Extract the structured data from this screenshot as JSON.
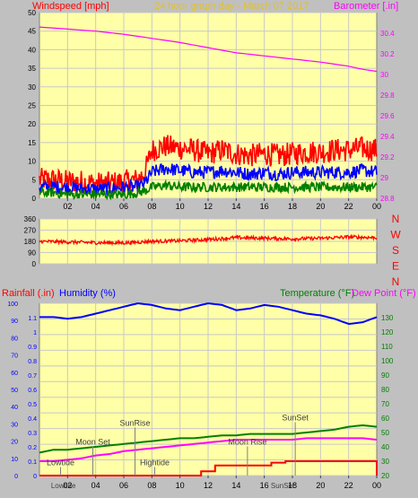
{
  "page": {
    "background": "#c0c0c0",
    "plot_background": "#ffffa8",
    "grid_color": "#c8c8c8"
  },
  "chart_data": [
    {
      "type": "line",
      "name": "wind-baro",
      "title": "24 hour graph day - March 07 2017",
      "title_color": "#e0c030",
      "left_label": "Windspeed [mph]",
      "left_label_color": "#ff0000",
      "right_label": "Barometer [.in]",
      "right_label_color": "#ff00ff",
      "x_ticks": [
        "02",
        "04",
        "06",
        "08",
        "10",
        "12",
        "14",
        "16",
        "18",
        "20",
        "22",
        "00"
      ],
      "x_range": [
        0,
        24
      ],
      "ylim_left": [
        0,
        50
      ],
      "left_ticks": [
        "0",
        "5",
        "10",
        "15",
        "20",
        "25",
        "30",
        "35",
        "40",
        "45",
        "50"
      ],
      "ylim_right": [
        28.8,
        30.6
      ],
      "right_ticks": [
        "28.8",
        "29",
        "29.2",
        "29.4",
        "29.6",
        "29.8",
        "30",
        "30.2",
        "30.4"
      ],
      "grid": true,
      "series": [
        {
          "key": "gust",
          "color": "#ff0000",
          "x": [
            0,
            1,
            2,
            3,
            4,
            5,
            6,
            7,
            7.5,
            8,
            9,
            10,
            11,
            12,
            13,
            14,
            15,
            16,
            17,
            18,
            19,
            20,
            21,
            22,
            23,
            24
          ],
          "values": [
            5,
            5,
            4.5,
            4.5,
            4,
            4,
            4.5,
            5,
            7,
            13,
            14,
            13.5,
            13,
            12,
            13,
            12,
            11.5,
            12,
            11.5,
            12,
            12.5,
            12.5,
            13,
            13,
            13.5,
            13
          ],
          "spread": 3.2
        },
        {
          "key": "average",
          "color": "#0000ff",
          "x": [
            0,
            1,
            2,
            3,
            4,
            5,
            6,
            7,
            7.5,
            8,
            9,
            10,
            11,
            12,
            13,
            14,
            15,
            16,
            17,
            18,
            19,
            20,
            21,
            22,
            23,
            24
          ],
          "values": [
            3,
            3,
            3,
            2.5,
            2.5,
            2.5,
            3,
            3,
            4,
            7,
            8,
            7.5,
            7,
            7,
            7.5,
            7,
            6.5,
            7,
            6.5,
            7,
            7,
            7,
            7,
            7,
            7.5,
            7
          ],
          "spread": 1.8
        },
        {
          "key": "minimum",
          "color": "#008000",
          "x": [
            0,
            1,
            2,
            3,
            4,
            5,
            6,
            7,
            7.5,
            8,
            9,
            10,
            11,
            12,
            13,
            14,
            15,
            16,
            17,
            18,
            19,
            20,
            21,
            22,
            23,
            24
          ],
          "values": [
            1.5,
            1.5,
            1,
            1,
            1,
            1,
            1,
            1.5,
            2,
            3,
            3.5,
            3,
            3,
            3,
            3,
            3,
            3,
            3,
            3,
            3,
            3,
            3,
            3,
            3,
            3,
            3
          ],
          "spread": 1.3
        },
        {
          "key": "barometer",
          "color": "#ff00ff",
          "axis": "right",
          "x": [
            0,
            2,
            4,
            6,
            8,
            10,
            12,
            14,
            16,
            18,
            20,
            22,
            23,
            24
          ],
          "values": [
            30.46,
            30.44,
            30.42,
            30.39,
            30.35,
            30.31,
            30.26,
            30.21,
            30.18,
            30.15,
            30.12,
            30.08,
            30.05,
            30.03
          ]
        }
      ]
    },
    {
      "type": "line",
      "name": "wind-direction",
      "x_range": [
        0,
        24
      ],
      "ylim": [
        0,
        360
      ],
      "left_ticks": [
        "0",
        "90",
        "180",
        "270",
        "360"
      ],
      "right_labels": [
        "N",
        "W",
        "S",
        "E",
        "N"
      ],
      "right_label_color": "#ff0000",
      "grid": true,
      "series": [
        {
          "key": "direction",
          "color": "#ff0000",
          "x": [
            0,
            2,
            4,
            6,
            8,
            10,
            12,
            14,
            16,
            18,
            20,
            22,
            24
          ],
          "values": [
            180,
            175,
            170,
            168,
            180,
            185,
            195,
            210,
            205,
            200,
            205,
            215,
            210
          ],
          "spread": 14
        }
      ]
    },
    {
      "type": "line",
      "name": "rain-humidity-temp",
      "rain_label": "Rainfall (.in)",
      "rain_label_color": "#ff0000",
      "humidity_label": "Humidity (%)",
      "humidity_label_color": "#0000ff",
      "temp_label": "Temperature (°F)",
      "temp_label_color": "#008000",
      "dew_label": "Dew Point (°F)",
      "dew_label_color": "#ff00ff",
      "x_ticks": [
        "02",
        "04",
        "06",
        "08",
        "10",
        "12",
        "14",
        "16",
        "18",
        "20",
        "22",
        "00"
      ],
      "x_range": [
        0,
        24
      ],
      "humidity_ticks": [
        "0",
        "10",
        "20",
        "30",
        "40",
        "50",
        "60",
        "70",
        "80",
        "90",
        "100"
      ],
      "rain_ticks": [
        "0",
        "0.1",
        "0.2",
        "0.3",
        "0.4",
        "0.5",
        "0.6",
        "0.7",
        "0.8",
        "0.9",
        "1",
        "1.1"
      ],
      "temp_ticks": [
        "20",
        "30",
        "40",
        "50",
        "60",
        "70",
        "80",
        "90",
        "100",
        "110",
        "120",
        "130"
      ],
      "ylim_humidity": [
        0,
        100
      ],
      "ylim_rain": [
        0,
        1.2
      ],
      "ylim_temp": [
        20,
        140
      ],
      "grid": true,
      "annotations": [
        {
          "label": "Lowtide",
          "x": 1.5,
          "y_frac": 0.06
        },
        {
          "label": "Moon Set",
          "x": 3.8,
          "y_frac": 0.18
        },
        {
          "label": "SunRise",
          "x": 6.8,
          "y_frac": 0.29
        },
        {
          "label": "Hightide",
          "x": 8.2,
          "y_frac": 0.06
        },
        {
          "label": "Moon Rise",
          "x": 14.8,
          "y_frac": 0.18
        },
        {
          "label": "SunSet",
          "x": 18.2,
          "y_frac": 0.32
        }
      ],
      "axis_notes": [
        {
          "label": "Lowtide",
          "x": 1.7
        },
        {
          "label": "SunSet",
          "x": 17.3
        }
      ],
      "series": [
        {
          "key": "humidity",
          "color": "#0000ff",
          "axis": "humidity",
          "x": [
            0,
            1,
            2,
            3,
            4,
            5,
            6,
            7,
            8,
            9,
            10,
            11,
            12,
            13,
            14,
            15,
            16,
            17,
            18,
            19,
            20,
            21,
            22,
            23,
            24
          ],
          "values": [
            92,
            92,
            91,
            92,
            94,
            96,
            98,
            100,
            99,
            97,
            96,
            98,
            100,
            99,
            96,
            97,
            99,
            98,
            96,
            94,
            93,
            91,
            88,
            89,
            92
          ]
        },
        {
          "key": "temperature",
          "color": "#008000",
          "axis": "temp",
          "x": [
            0,
            1,
            2,
            3,
            4,
            5,
            6,
            7,
            8,
            9,
            10,
            11,
            12,
            13,
            14,
            15,
            16,
            17,
            18,
            19,
            20,
            21,
            22,
            23,
            24
          ],
          "values": [
            36,
            38,
            38,
            39,
            40,
            41,
            42,
            43,
            44,
            45,
            46,
            46,
            47,
            48,
            48,
            49,
            49,
            49,
            49,
            50,
            51,
            52,
            54,
            55,
            54
          ]
        },
        {
          "key": "dewpoint",
          "color": "#ff00ff",
          "axis": "temp",
          "x": [
            0,
            1,
            2,
            3,
            4,
            5,
            6,
            7,
            8,
            9,
            10,
            11,
            12,
            13,
            14,
            15,
            16,
            17,
            18,
            19,
            20,
            21,
            22,
            23,
            24
          ],
          "values": [
            30,
            30,
            31,
            32,
            34,
            35,
            37,
            38,
            39,
            40,
            41,
            42,
            43,
            44,
            45,
            45,
            45,
            45,
            45,
            46,
            46,
            46,
            46,
            46,
            45
          ]
        },
        {
          "key": "rainfall",
          "color": "#ff0000",
          "axis": "rain",
          "step": true,
          "x": [
            0,
            10.5,
            11.5,
            12.5,
            16.5,
            17.5,
            18.5,
            23.8,
            24
          ],
          "values": [
            0,
            0,
            0.03,
            0.07,
            0.09,
            0.1,
            0.1,
            0.1,
            0
          ]
        }
      ]
    }
  ]
}
